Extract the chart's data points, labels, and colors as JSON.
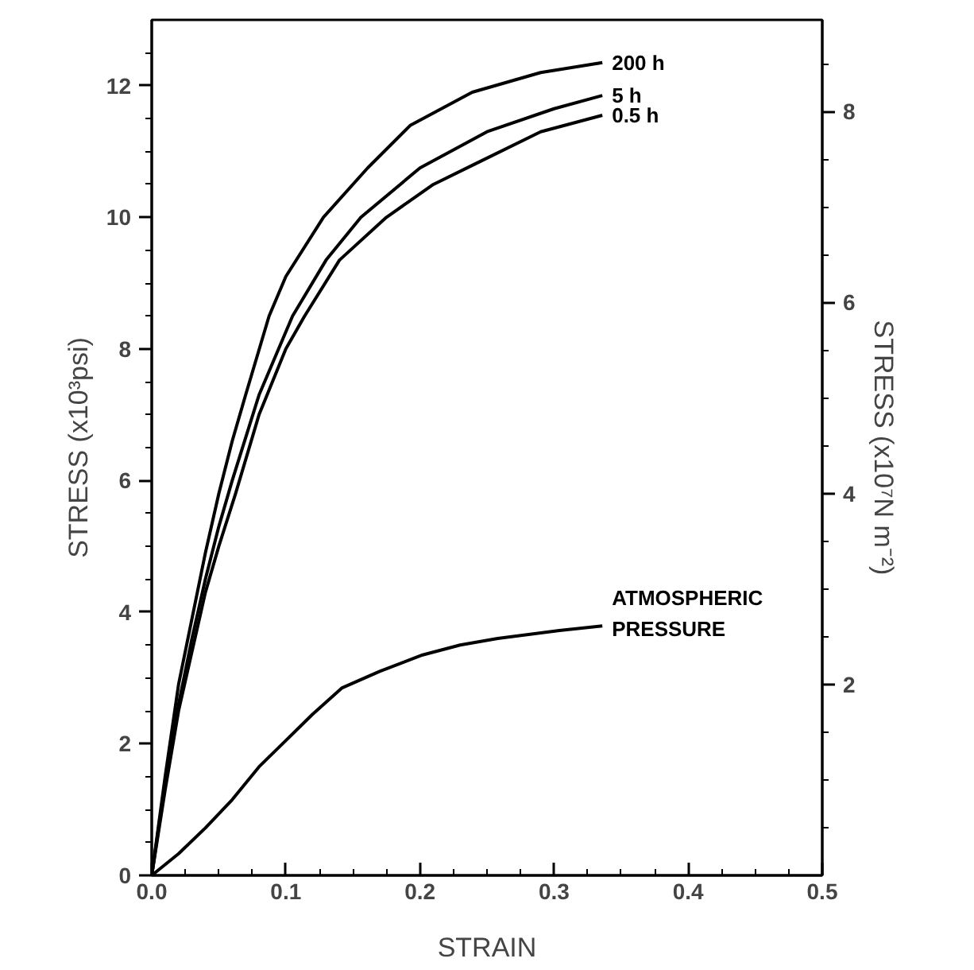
{
  "chart_data": {
    "type": "line",
    "xlabel": "STRAIN",
    "ylabel": "STRESS (x10³psi)",
    "y2label": "STRESS (x10⁷N m⁻²)",
    "xlim": [
      0,
      0.5
    ],
    "ylim": [
      0,
      13
    ],
    "y2lim": [
      0,
      8.96
    ],
    "xticks": [
      {
        "value": 0,
        "label": "0.0"
      },
      0.1,
      0.2,
      0.3,
      0.4,
      0.5,
      {
        "value": 0.025,
        "label": null
      },
      {
        "value": 0.05,
        "label": null
      },
      {
        "value": 0.075,
        "label": null
      },
      {
        "value": 0.125,
        "label": null
      },
      {
        "value": 0.15,
        "label": null
      },
      {
        "value": 0.175,
        "label": null
      },
      {
        "value": 0.225,
        "label": null
      },
      {
        "value": 0.25,
        "label": null
      },
      {
        "value": 0.275,
        "label": null
      },
      {
        "value": 0.325,
        "label": null
      },
      {
        "value": 0.35,
        "label": null
      },
      {
        "value": 0.375,
        "label": null
      },
      {
        "value": 0.425,
        "label": null
      },
      {
        "value": 0.45,
        "label": null
      },
      {
        "value": 0.475,
        "label": null
      }
    ],
    "yticks": [
      0,
      2,
      4,
      6,
      8,
      10,
      12,
      {
        "value": 0.5,
        "label": null
      },
      {
        "value": 1,
        "label": null
      },
      {
        "value": 1.5,
        "label": null
      },
      {
        "value": 2.5,
        "label": null
      },
      {
        "value": 3,
        "label": null
      },
      {
        "value": 3.5,
        "label": null
      },
      {
        "value": 4.5,
        "label": null
      },
      {
        "value": 5,
        "label": null
      },
      {
        "value": 5.5,
        "label": null
      },
      {
        "value": 6.5,
        "label": null
      },
      {
        "value": 7,
        "label": null
      },
      {
        "value": 7.5,
        "label": null
      },
      {
        "value": 8.5,
        "label": null
      },
      {
        "value": 9,
        "label": null
      },
      {
        "value": 9.5,
        "label": null
      },
      {
        "value": 10.5,
        "label": null
      },
      {
        "value": 11,
        "label": null
      },
      {
        "value": 11.5,
        "label": null
      },
      {
        "value": 12.5,
        "label": null
      }
    ],
    "y2ticks": [
      2,
      4,
      6,
      8,
      {
        "value": 0.5,
        "label": null
      },
      {
        "value": 1,
        "label": null
      },
      {
        "value": 1.5,
        "label": null
      },
      {
        "value": 2.5,
        "label": null
      },
      {
        "value": 3,
        "label": null
      },
      {
        "value": 3.5,
        "label": null
      },
      {
        "value": 4.5,
        "label": null
      },
      {
        "value": 5,
        "label": null
      },
      {
        "value": 5.5,
        "label": null
      },
      {
        "value": 6.5,
        "label": null
      },
      {
        "value": 7,
        "label": null
      },
      {
        "value": 7.5,
        "label": null
      },
      {
        "value": 8.5,
        "label": null
      }
    ],
    "grid": false,
    "legend": false,
    "marker": "none",
    "line_style": "solid",
    "series": [
      {
        "name": "200 h",
        "color": "#000000",
        "x": [
          0,
          0.01,
          0.02,
          0.03,
          0.04,
          0.05,
          0.06,
          0.07,
          0.0875,
          0.1,
          0.128,
          0.161,
          0.193,
          0.239,
          0.29,
          0.336
        ],
        "values": [
          0,
          1.5,
          2.9,
          3.9,
          4.9,
          5.8,
          6.6,
          7.3,
          8.5,
          9.1,
          10.0,
          10.75,
          11.4,
          11.9,
          12.2,
          12.35
        ]
      },
      {
        "name": "5  h",
        "color": "#000000",
        "x": [
          0,
          0.01,
          0.02,
          0.03,
          0.04,
          0.05,
          0.06,
          0.08,
          0.105,
          0.13,
          0.156,
          0.2,
          0.25,
          0.3,
          0.336
        ],
        "values": [
          0,
          1.4,
          2.6,
          3.6,
          4.5,
          5.3,
          6.0,
          7.3,
          8.5,
          9.35,
          10.0,
          10.75,
          11.3,
          11.65,
          11.85
        ]
      },
      {
        "name": "0.5 h",
        "color": "#000000",
        "x": [
          0,
          0.01,
          0.02,
          0.03,
          0.04,
          0.05,
          0.0625,
          0.08,
          0.1,
          0.114,
          0.14,
          0.175,
          0.21,
          0.24,
          0.29,
          0.336
        ],
        "values": [
          0,
          1.3,
          2.5,
          3.4,
          4.3,
          5.0,
          5.8,
          7.0,
          8.0,
          8.5,
          9.35,
          10.0,
          10.5,
          10.8,
          11.3,
          11.55
        ]
      },
      {
        "name": "ATMOSPHERIC\nPRESSURE",
        "color": "#000000",
        "x": [
          0,
          0.02,
          0.04,
          0.06,
          0.08,
          0.1,
          0.12,
          0.142,
          0.17,
          0.202,
          0.23,
          0.258,
          0.304,
          0.336
        ],
        "values": [
          0,
          0.33,
          0.72,
          1.15,
          1.65,
          2.05,
          2.45,
          2.85,
          3.1,
          3.35,
          3.5,
          3.6,
          3.72,
          3.79
        ]
      }
    ]
  }
}
